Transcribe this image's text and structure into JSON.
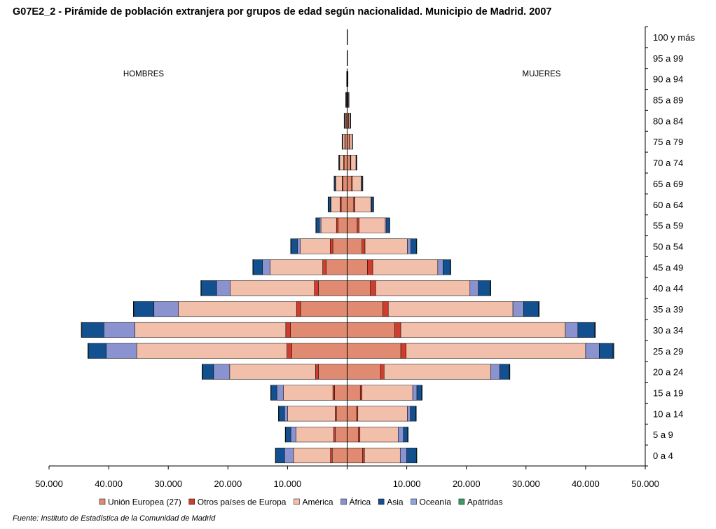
{
  "header": {
    "title": "G07E2_2 - Pirámide de población extranjera por grupos de edad según nacionalidad. Municipio de Madrid. 2007"
  },
  "source": "Fuente: Instituto de Estadística de la Comunidad de Madrid",
  "colors": {
    "Unión Europea (27)": "#e08a72",
    "Otros países de Europa": "#cf3e2c",
    "América": "#f2bfaa",
    "África": "#8a93cf",
    "Asia": "#12508f",
    "Oceanía": "#8fa6dc",
    "Apátridas": "#3a9d64"
  },
  "chart_data": {
    "type": "population-pyramid (stacked horizontal bar)",
    "title": "G07E2_2 - Pirámide de población extranjera por grupos de edad según nacionalidad. Municipio de Madrid. 2007",
    "left_label": "HOMBRES",
    "right_label": "MUJERES",
    "xlim": [
      -50000,
      50000
    ],
    "x_tick_labels": [
      "50.000",
      "40.000",
      "30.000",
      "20.000",
      "10.000",
      "10.000",
      "20.000",
      "30.000",
      "40.000",
      "50.000"
    ],
    "x_tick_values": [
      -50000,
      -40000,
      -30000,
      -20000,
      -10000,
      10000,
      20000,
      30000,
      40000,
      50000
    ],
    "categories": [
      "0 a 4",
      "5 a 9",
      "10 a 14",
      "15 a 19",
      "20 a 24",
      "25 a 29",
      "30 a 34",
      "35 a 39",
      "40 a 44",
      "45 a 49",
      "50 a 54",
      "55 a 59",
      "60 a 64",
      "65 a 69",
      "70 a 74",
      "75 a 79",
      "80 a 84",
      "85 a 89",
      "90 a 94",
      "95 a 99",
      "100 y más"
    ],
    "series_order": [
      "Unión Europea (27)",
      "Otros países de Europa",
      "América",
      "África",
      "Asia",
      "Oceanía",
      "Apátridas"
    ],
    "hombres": {
      "Unión Europea (27)": [
        2500,
        2000,
        1800,
        2100,
        4800,
        9300,
        9500,
        7800,
        4800,
        3500,
        2400,
        1500,
        1000,
        700,
        500,
        350,
        200,
        100,
        30,
        10,
        5
      ],
      "Otros países de Europa": [
        300,
        250,
        200,
        300,
        500,
        800,
        800,
        700,
        700,
        600,
        450,
        300,
        200,
        130,
        90,
        50,
        25,
        10,
        5,
        0,
        0
      ],
      "América": [
        6200,
        6300,
        8000,
        8300,
        14400,
        25200,
        25300,
        19800,
        14100,
        8800,
        5000,
        2600,
        1500,
        1100,
        700,
        400,
        250,
        120,
        40,
        10,
        5
      ],
      "África": [
        1500,
        900,
        500,
        1100,
        2700,
        5100,
        5200,
        4100,
        2300,
        1300,
        500,
        250,
        100,
        50,
        20,
        10,
        5,
        0,
        0,
        0,
        0
      ],
      "Asia": [
        1500,
        900,
        1000,
        1000,
        1900,
        3000,
        3700,
        3400,
        2600,
        1600,
        1100,
        600,
        400,
        200,
        100,
        50,
        30,
        10,
        5,
        0,
        0
      ],
      "Oceanía": [
        30,
        30,
        30,
        30,
        40,
        80,
        80,
        60,
        40,
        30,
        20,
        15,
        10,
        5,
        5,
        0,
        0,
        0,
        0,
        0,
        0
      ],
      "Apátridas": [
        5,
        5,
        5,
        5,
        10,
        15,
        15,
        10,
        10,
        5,
        5,
        0,
        0,
        0,
        0,
        0,
        0,
        0,
        0,
        0,
        0
      ]
    },
    "mujeres": {
      "Unión Europea (27)": [
        2600,
        1900,
        1600,
        2200,
        5600,
        9000,
        8000,
        6000,
        3900,
        3400,
        2500,
        1700,
        1100,
        750,
        550,
        400,
        250,
        120,
        40,
        10,
        5
      ],
      "Otros países de Europa": [
        300,
        250,
        200,
        300,
        600,
        900,
        1000,
        900,
        900,
        900,
        500,
        300,
        200,
        120,
        80,
        50,
        30,
        10,
        5,
        0,
        0
      ],
      "América": [
        6000,
        6400,
        8300,
        8500,
        17900,
        30100,
        27600,
        20900,
        15800,
        10900,
        7100,
        4400,
        2700,
        1500,
        850,
        400,
        250,
        120,
        40,
        10,
        5
      ],
      "África": [
        1100,
        900,
        500,
        700,
        1500,
        2300,
        2100,
        1800,
        1400,
        900,
        600,
        200,
        100,
        50,
        20,
        10,
        5,
        0,
        0,
        0,
        0
      ],
      "Asia": [
        1600,
        700,
        900,
        800,
        1600,
        2300,
        2800,
        2500,
        2000,
        1200,
        900,
        500,
        300,
        150,
        80,
        40,
        20,
        10,
        5,
        0,
        0
      ],
      "Oceanía": [
        30,
        30,
        30,
        30,
        40,
        80,
        80,
        60,
        40,
        30,
        20,
        15,
        10,
        5,
        5,
        0,
        0,
        0,
        0,
        0,
        0
      ],
      "Apátridas": [
        5,
        5,
        5,
        5,
        10,
        15,
        15,
        10,
        10,
        5,
        5,
        0,
        0,
        0,
        0,
        0,
        0,
        0,
        0,
        0,
        0
      ]
    },
    "legend": [
      "Unión Europea (27)",
      "Otros países de Europa",
      "América",
      "África",
      "Asia",
      "Oceanía",
      "Apátridas"
    ],
    "legend_position": "bottom"
  }
}
